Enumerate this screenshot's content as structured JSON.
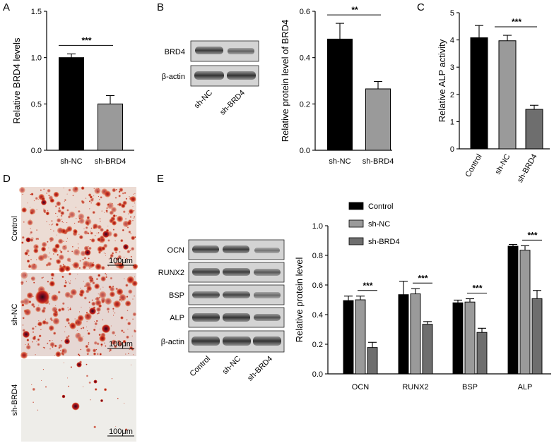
{
  "panel_labels": [
    "A",
    "B",
    "C",
    "D",
    "E"
  ],
  "colors": {
    "black": "#000000",
    "gray": "#9a9a9a",
    "dark_gray": "#6e6e6e",
    "alp_c": "#000000",
    "alp_n": "#9a9a9a",
    "alp_b": "#6e6e6e"
  },
  "chart_data": [
    {
      "id": "A",
      "type": "bar",
      "categories": [
        "sh-NC",
        "sh-BRD4"
      ],
      "values": [
        1.0,
        0.5
      ],
      "errors": [
        0.04,
        0.09
      ],
      "ylabel": "Relative BRD4 levels",
      "ylim": [
        0,
        1.5
      ],
      "yticks": [
        "0.0",
        "0.5",
        "1.0",
        "1.5"
      ],
      "colors": [
        "#000000",
        "#9a9a9a"
      ],
      "significance": [
        {
          "from": 0,
          "to": 1,
          "label": "***"
        }
      ]
    },
    {
      "id": "B",
      "type": "bar",
      "categories": [
        "sh-NC",
        "sh-BRD4"
      ],
      "values": [
        0.48,
        0.265
      ],
      "errors": [
        0.068,
        0.032
      ],
      "ylabel": "Relative protein level of BRD4",
      "ylim": [
        0,
        0.6
      ],
      "yticks": [
        "0.0",
        "0.2",
        "0.4",
        "0.6"
      ],
      "colors": [
        "#000000",
        "#9a9a9a"
      ],
      "significance": [
        {
          "from": 0,
          "to": 1,
          "label": "**"
        }
      ]
    },
    {
      "id": "C",
      "type": "bar",
      "categories": [
        "Control",
        "sh-NC",
        "sh-BRD4"
      ],
      "values": [
        4.08,
        3.97,
        1.45
      ],
      "errors": [
        0.45,
        0.2,
        0.15
      ],
      "ylabel": "Relative ALP activity",
      "ylim": [
        0,
        5
      ],
      "yticks": [
        "0",
        "1",
        "2",
        "3",
        "4",
        "5"
      ],
      "colors": [
        "#000000",
        "#9a9a9a",
        "#6e6e6e"
      ],
      "significance": [
        {
          "from": 1,
          "to": 2,
          "label": "***"
        }
      ]
    },
    {
      "id": "E",
      "type": "bar",
      "categories": [
        "OCN",
        "RUNX2",
        "BSP",
        "ALP"
      ],
      "series": [
        {
          "name": "Control",
          "values": [
            0.495,
            0.535,
            0.48,
            0.862
          ],
          "errors": [
            0.03,
            0.09,
            0.018,
            0.012
          ]
        },
        {
          "name": "sh-NC",
          "values": [
            0.5,
            0.54,
            0.485,
            0.835
          ],
          "errors": [
            0.025,
            0.035,
            0.022,
            0.03
          ]
        },
        {
          "name": "sh-BRD4",
          "values": [
            0.178,
            0.335,
            0.28,
            0.508
          ],
          "errors": [
            0.035,
            0.018,
            0.028,
            0.055
          ]
        }
      ],
      "ylabel": "Relative protein level",
      "ylim": [
        0,
        1.0
      ],
      "yticks": [
        "0.0",
        "0.2",
        "0.4",
        "0.6",
        "0.8",
        "1.0"
      ],
      "colors": [
        "#000000",
        "#9a9a9a",
        "#6e6e6e"
      ],
      "legend": "top-left",
      "significance_label": "***"
    }
  ],
  "blot_B": {
    "rows": [
      "BRD4",
      "β-actin"
    ],
    "lanes": [
      "sh-NC",
      "sh-BRD4"
    ]
  },
  "blot_E": {
    "rows": [
      "OCN",
      "RUNX2",
      "BSP",
      "ALP",
      "β-actin"
    ],
    "lanes": [
      "Control",
      "sh-NC",
      "sh-BRD4"
    ]
  },
  "micro_D": {
    "rows": [
      "Control",
      "sh-NC",
      "sh-BRD4"
    ],
    "scale": "100μm"
  }
}
